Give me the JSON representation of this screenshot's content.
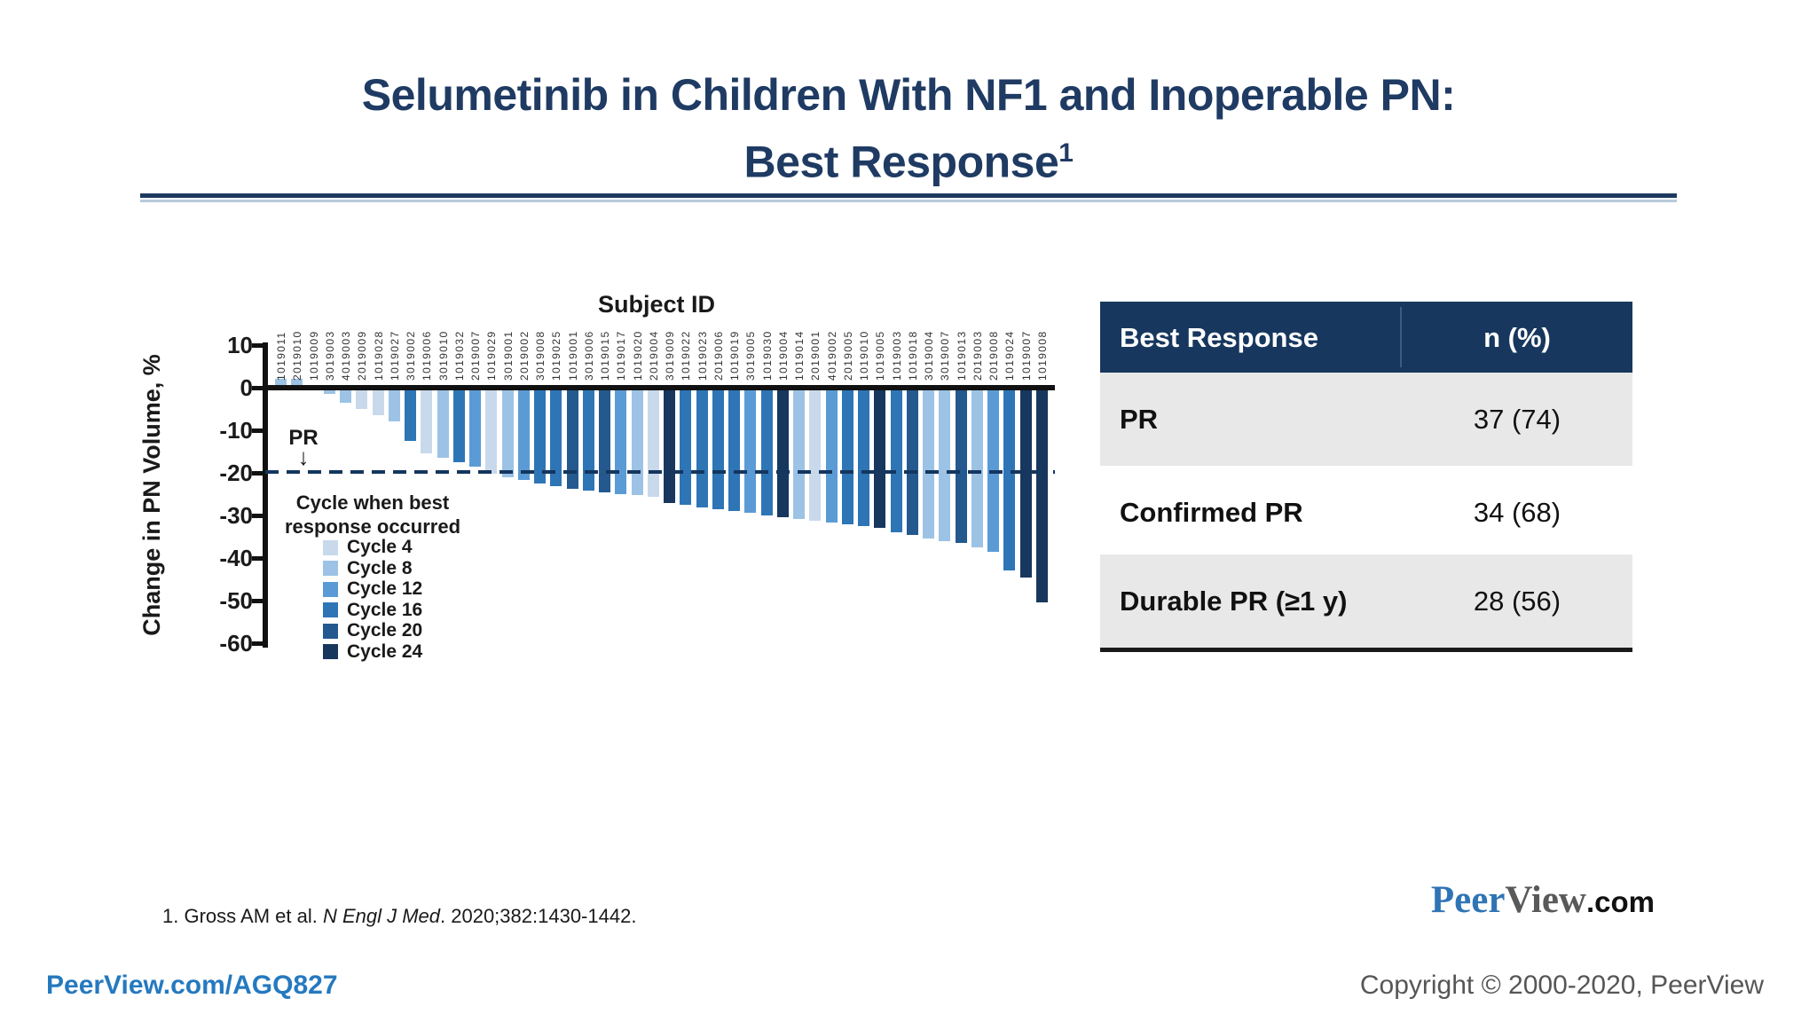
{
  "slide": {
    "title_line1": "Selumetinib in Children With NF1 and Inoperable PN:",
    "title_line2": "Best Response",
    "title_sup": "1",
    "footnote_prefix": "1. Gross AM et al. ",
    "footnote_journal": "N Engl J Med",
    "footnote_suffix": ". 2020;382:1430-1442.",
    "footer_link": "PeerView.com/AGQ827",
    "copyright": "Copyright © 2000-2020, PeerView",
    "logo": {
      "peer": "Peer",
      "view": "View",
      "com": ".com"
    }
  },
  "table": {
    "headers": [
      "Best Response",
      "n (%)"
    ],
    "rows": [
      [
        "PR",
        "37 (74)"
      ],
      [
        "Confirmed PR",
        "34 (68)"
      ],
      [
        "Durable PR (≥1 y)",
        "28 (56)"
      ]
    ]
  },
  "chart_data": {
    "type": "bar",
    "title": "Subject ID",
    "xlabel": "Subject ID",
    "ylabel": "Change in PN Volume, %",
    "ylim": [
      -60,
      10
    ],
    "yticks": [
      10,
      0,
      -10,
      -20,
      -30,
      -40,
      -50,
      -60
    ],
    "grid": false,
    "reference_line": {
      "y": -20,
      "label": "PR",
      "arrow": "↓"
    },
    "legend_title_lines": [
      "Cycle when best",
      "response occurred"
    ],
    "legend_position": "lower-left",
    "legend": [
      {
        "label": "Cycle 4",
        "color": "#c9d9ec"
      },
      {
        "label": "Cycle 8",
        "color": "#9cc3e5"
      },
      {
        "label": "Cycle 12",
        "color": "#5b9bd5"
      },
      {
        "label": "Cycle 16",
        "color": "#2e75b6"
      },
      {
        "label": "Cycle 20",
        "color": "#24598f"
      },
      {
        "label": "Cycle 24",
        "color": "#17375e"
      }
    ],
    "categories": [
      "1019011",
      "2019010",
      "1019009",
      "3019003",
      "4019003",
      "2019009",
      "1019028",
      "1019027",
      "3019002",
      "1019006",
      "3019010",
      "1019032",
      "2019007",
      "1019029",
      "3019001",
      "2019002",
      "3019008",
      "1019025",
      "1019001",
      "3019006",
      "1019015",
      "1019017",
      "1019020",
      "2019004",
      "3019009",
      "1019022",
      "1019023",
      "2019006",
      "1019019",
      "3019005",
      "1019030",
      "1019004",
      "1019014",
      "2019001",
      "4019002",
      "2019005",
      "1019010",
      "1019005",
      "1019003",
      "1019018",
      "3019004",
      "3019007",
      "1019013",
      "2019003",
      "2019008",
      "1019024",
      "1019007",
      "1019008"
    ],
    "values": [
      2,
      2,
      -0.5,
      -1.5,
      -3.5,
      -5,
      -6.5,
      -8,
      -12.5,
      -15.5,
      -16.5,
      -17.5,
      -18.5,
      -20.3,
      -21,
      -21.6,
      -22.4,
      -23.2,
      -23.8,
      -24.2,
      -24.6,
      -25,
      -25.3,
      -25.6,
      -27,
      -27.6,
      -28.2,
      -28.6,
      -29,
      -29.4,
      -30,
      -30.4,
      -30.8,
      -31.2,
      -31.6,
      -32,
      -32.5,
      -33,
      -34,
      -34.5,
      -35.5,
      -36,
      -36.5,
      -37.5,
      -38.5,
      -43,
      -44.5,
      -50.5
    ],
    "cycle_of_best_response": [
      8,
      8,
      4,
      8,
      8,
      4,
      4,
      8,
      16,
      4,
      8,
      16,
      12,
      4,
      8,
      12,
      16,
      16,
      20,
      16,
      20,
      12,
      8,
      4,
      24,
      16,
      16,
      16,
      16,
      12,
      16,
      24,
      8,
      4,
      12,
      16,
      16,
      24,
      16,
      20,
      8,
      8,
      20,
      8,
      12,
      16,
      24,
      24
    ]
  }
}
